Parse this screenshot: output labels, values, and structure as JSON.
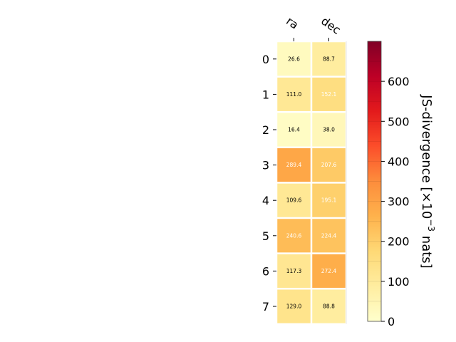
{
  "chart_data": {
    "type": "heatmap",
    "columns": [
      "ra",
      "dec"
    ],
    "rows": [
      "0",
      "1",
      "2",
      "3",
      "4",
      "5",
      "6",
      "7"
    ],
    "values": [
      [
        26.6,
        88.7
      ],
      [
        111.0,
        152.1
      ],
      [
        16.4,
        38.0
      ],
      [
        289.4,
        207.6
      ],
      [
        109.6,
        195.1
      ],
      [
        240.6,
        224.4
      ],
      [
        117.3,
        272.4
      ],
      [
        129.0,
        88.8
      ]
    ],
    "cell_labels": [
      [
        "26.6",
        "88.7"
      ],
      [
        "111.0",
        "152.1"
      ],
      [
        "16.4",
        "38.0"
      ],
      [
        "289.4",
        "207.6"
      ],
      [
        "109.6",
        "195.1"
      ],
      [
        "240.6",
        "224.4"
      ],
      [
        "117.3",
        "272.4"
      ],
      [
        "129.0",
        "88.8"
      ]
    ],
    "colormap": "YlOrRd",
    "vmin": 0,
    "vmax": 700,
    "colorbar": {
      "label": "JS-divergence [×10",
      "label_exponent": "−3",
      "label_suffix": " nats]",
      "ticks": [
        0,
        100,
        200,
        300,
        400,
        500,
        600
      ],
      "tick_labels": [
        "0",
        "100",
        "200",
        "300",
        "400",
        "500",
        "600"
      ]
    },
    "cell_text_dark": "#000000",
    "cell_text_light": "#ffffff"
  }
}
